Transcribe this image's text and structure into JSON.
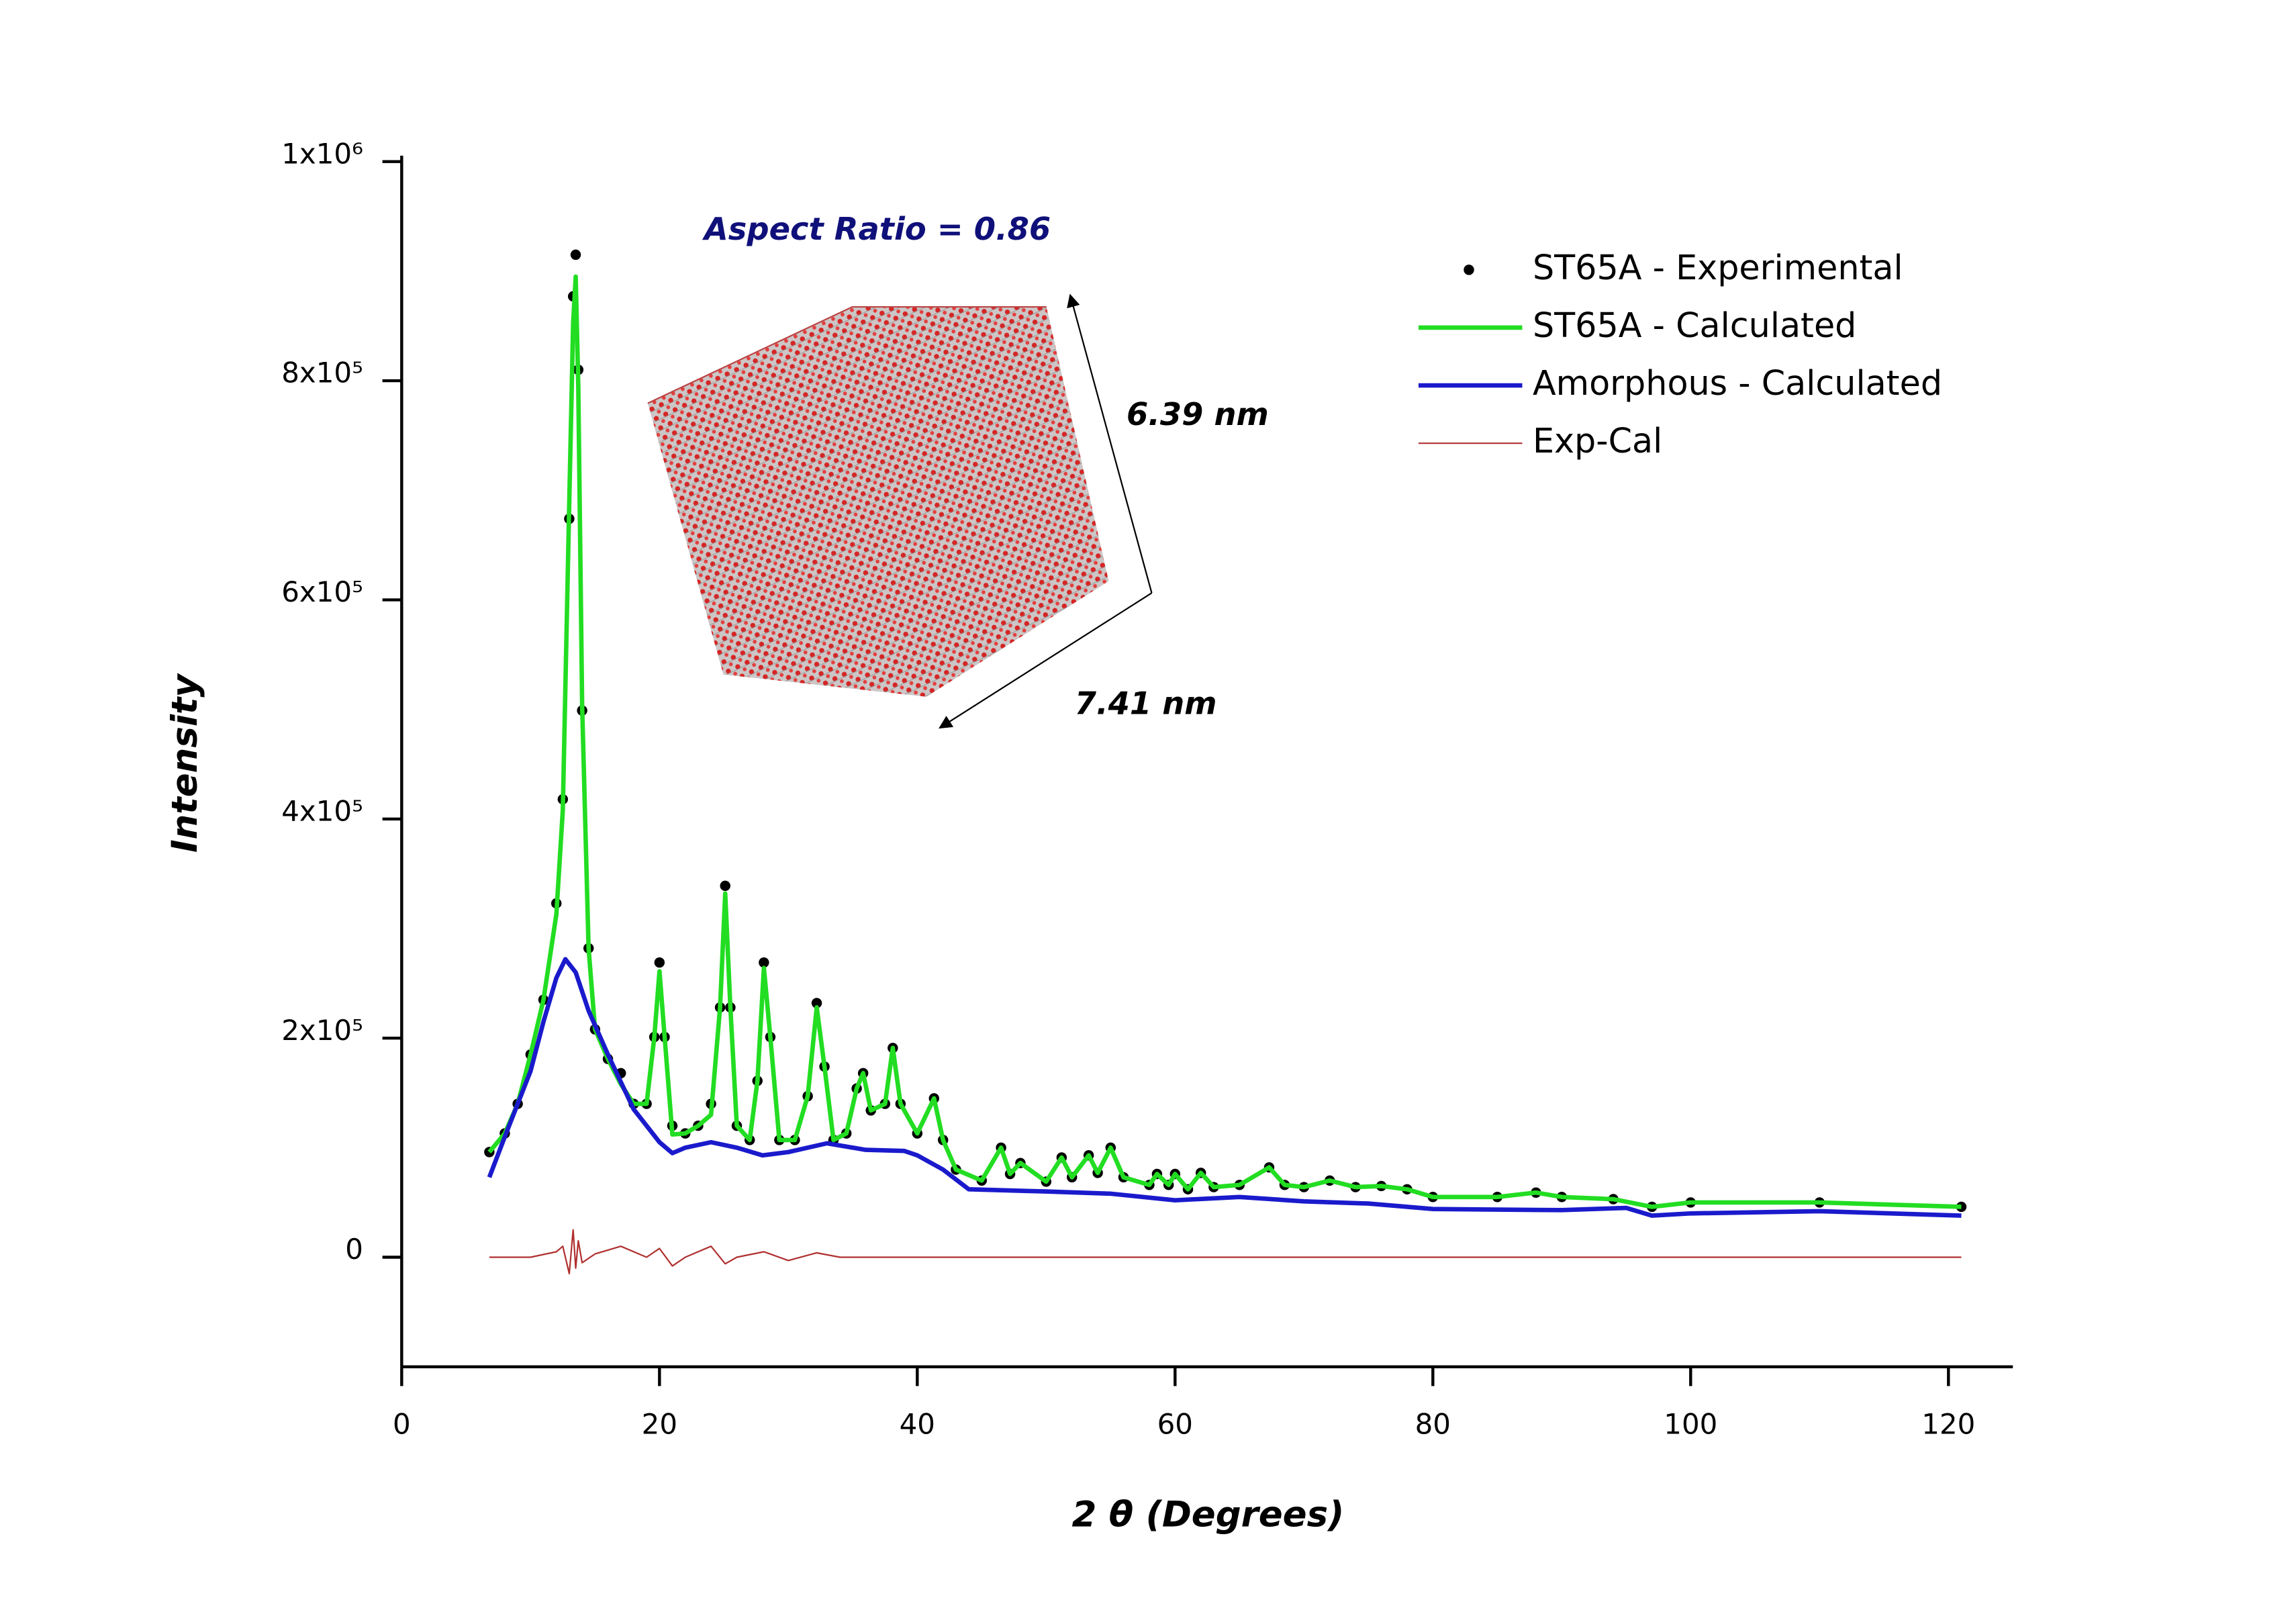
{
  "chart_data": {
    "type": "line",
    "x_label": "2 θ (Degrees)",
    "y_label": "Intensity",
    "annotations": [
      "Aspect Ratio = 0.86",
      "6.39 nm",
      "7.41 nm"
    ],
    "xlim": [
      0,
      125
    ],
    "xticks": [
      0,
      20,
      40,
      60,
      80,
      100,
      120
    ],
    "ylim": [
      -100000,
      1000000
    ],
    "yticks": [
      0,
      {
        "value": 200000,
        "label": "2x10⁵"
      },
      {
        "value": 400000,
        "label": "4x10⁵"
      },
      {
        "value": 600000,
        "label": "6x10⁵"
      },
      {
        "value": 800000,
        "label": "8x10⁵"
      },
      {
        "value": 1000000,
        "label": "1x10⁶"
      }
    ],
    "grid": false,
    "legend": "top right",
    "series": [
      {
        "name": "ST65A - Experimental",
        "color": "#000000",
        "style": "dots",
        "x": [
          6.8,
          8,
          9,
          10,
          11,
          12,
          12.5,
          13,
          13.3,
          13.5,
          13.7,
          14,
          14.5,
          15,
          16,
          17,
          18,
          19,
          19.6,
          20,
          20.4,
          21,
          22,
          23,
          24,
          24.7,
          25.1,
          25.5,
          26,
          27,
          27.6,
          28.1,
          28.6,
          29.3,
          30.5,
          31.5,
          32.2,
          32.8,
          33.5,
          34.5,
          35.3,
          35.8,
          36.4,
          37.5,
          38.1,
          38.7,
          40,
          41.3,
          42,
          43,
          45,
          46.5,
          47.2,
          48,
          50,
          51.2,
          52,
          53.3,
          54,
          55,
          56,
          58,
          58.6,
          59.5,
          60,
          61,
          62,
          63,
          65,
          67.3,
          68.5,
          70,
          72,
          74,
          76,
          78,
          80,
          85,
          88,
          90,
          94,
          97,
          100,
          110,
          121
        ],
        "values": [
          96000,
          113000,
          140000,
          185000,
          235000,
          323000,
          418000,
          674000,
          877000,
          915000,
          810000,
          499000,
          282000,
          208000,
          181000,
          168000,
          140000,
          140000,
          201000,
          269000,
          201000,
          120000,
          113000,
          120000,
          140000,
          228000,
          339000,
          228000,
          120000,
          107000,
          161000,
          269000,
          201000,
          107000,
          107000,
          147000,
          232000,
          174000,
          107000,
          113000,
          154000,
          168000,
          134000,
          140000,
          191000,
          140000,
          113000,
          145000,
          107000,
          80000,
          70000,
          100000,
          76000,
          86000,
          69000,
          91000,
          73000,
          93000,
          77000,
          100000,
          73000,
          66000,
          76000,
          66000,
          76000,
          62000,
          77000,
          64000,
          66000,
          82000,
          66000,
          64000,
          70000,
          64000,
          65000,
          62000,
          55000,
          55000,
          59000,
          55000,
          53000,
          46000,
          50000,
          50000,
          46000
        ]
      },
      {
        "name": "ST65A - Calculated",
        "color": "#22dd22",
        "style": "line",
        "x": [
          6.8,
          8,
          9,
          10,
          11,
          12,
          12.5,
          13,
          13.3,
          13.5,
          13.7,
          14,
          14.5,
          15,
          16,
          17,
          18,
          19,
          19.6,
          20,
          20.4,
          21,
          22,
          23,
          24,
          24.7,
          25.1,
          25.5,
          26,
          27,
          27.6,
          28.1,
          28.6,
          29.3,
          30.5,
          31.5,
          32.2,
          32.8,
          33.5,
          34.5,
          35.3,
          35.8,
          36.4,
          37.5,
          38.1,
          38.7,
          40,
          41.3,
          42,
          43,
          45,
          46.5,
          47.2,
          48,
          50,
          51.2,
          52,
          53.3,
          54,
          55,
          56,
          58,
          58.6,
          59.5,
          60,
          61,
          62,
          63,
          65,
          67.3,
          68.5,
          70,
          72,
          74,
          76,
          78,
          80,
          85,
          88,
          90,
          94,
          97,
          100,
          110,
          121
        ],
        "values": [
          96000,
          113000,
          140000,
          185000,
          235000,
          313000,
          408000,
          689000,
          852000,
          895000,
          795000,
          504000,
          282000,
          208000,
          181000,
          158000,
          140000,
          140000,
          201000,
          261000,
          201000,
          112000,
          113000,
          120000,
          130000,
          228000,
          332000,
          228000,
          120000,
          107000,
          161000,
          264000,
          201000,
          107000,
          107000,
          147000,
          228000,
          174000,
          107000,
          113000,
          154000,
          168000,
          134000,
          140000,
          191000,
          140000,
          113000,
          145000,
          107000,
          80000,
          70000,
          100000,
          76000,
          86000,
          69000,
          91000,
          73000,
          93000,
          77000,
          100000,
          73000,
          66000,
          76000,
          66000,
          76000,
          62000,
          77000,
          64000,
          66000,
          82000,
          66000,
          64000,
          70000,
          64000,
          65000,
          62000,
          55000,
          55000,
          59000,
          55000,
          53000,
          46000,
          50000,
          50000,
          46000
        ]
      },
      {
        "name": "Amorphous - Calculated",
        "color": "#1a1acc",
        "style": "line",
        "x": [
          6.8,
          8,
          10,
          11,
          12,
          12.7,
          13.5,
          14.5,
          16,
          18,
          20,
          21,
          22,
          24,
          26,
          28,
          30,
          33,
          36,
          39,
          40,
          42,
          44,
          50,
          55,
          60,
          65,
          70,
          75,
          80,
          90,
          95,
          97,
          100,
          110,
          121
        ],
        "values": [
          73000,
          110000,
          170000,
          215000,
          255000,
          272000,
          260000,
          225000,
          185000,
          135000,
          105000,
          95000,
          100000,
          105000,
          100000,
          93000,
          96000,
          104000,
          98000,
          97000,
          93000,
          80000,
          62000,
          60000,
          58000,
          52000,
          55000,
          51000,
          49000,
          44000,
          43000,
          45000,
          38000,
          40000,
          42000,
          38000
        ]
      },
      {
        "name": "Exp-Cal",
        "color": "#b03030",
        "style": "thin",
        "x": [
          6.8,
          10,
          12,
          12.5,
          13,
          13.3,
          13.5,
          13.7,
          14,
          15,
          17,
          19,
          20,
          21,
          22,
          24,
          25.1,
          26,
          28.1,
          30,
          32.2,
          34,
          40,
          60,
          80,
          100,
          121
        ],
        "values": [
          0,
          0,
          5000,
          10000,
          -15000,
          25000,
          -10000,
          15000,
          -5000,
          3000,
          10000,
          0,
          8000,
          -8000,
          0,
          10000,
          -6000,
          0,
          5000,
          -3000,
          4000,
          0,
          0,
          0,
          0,
          0,
          0
        ]
      }
    ]
  }
}
